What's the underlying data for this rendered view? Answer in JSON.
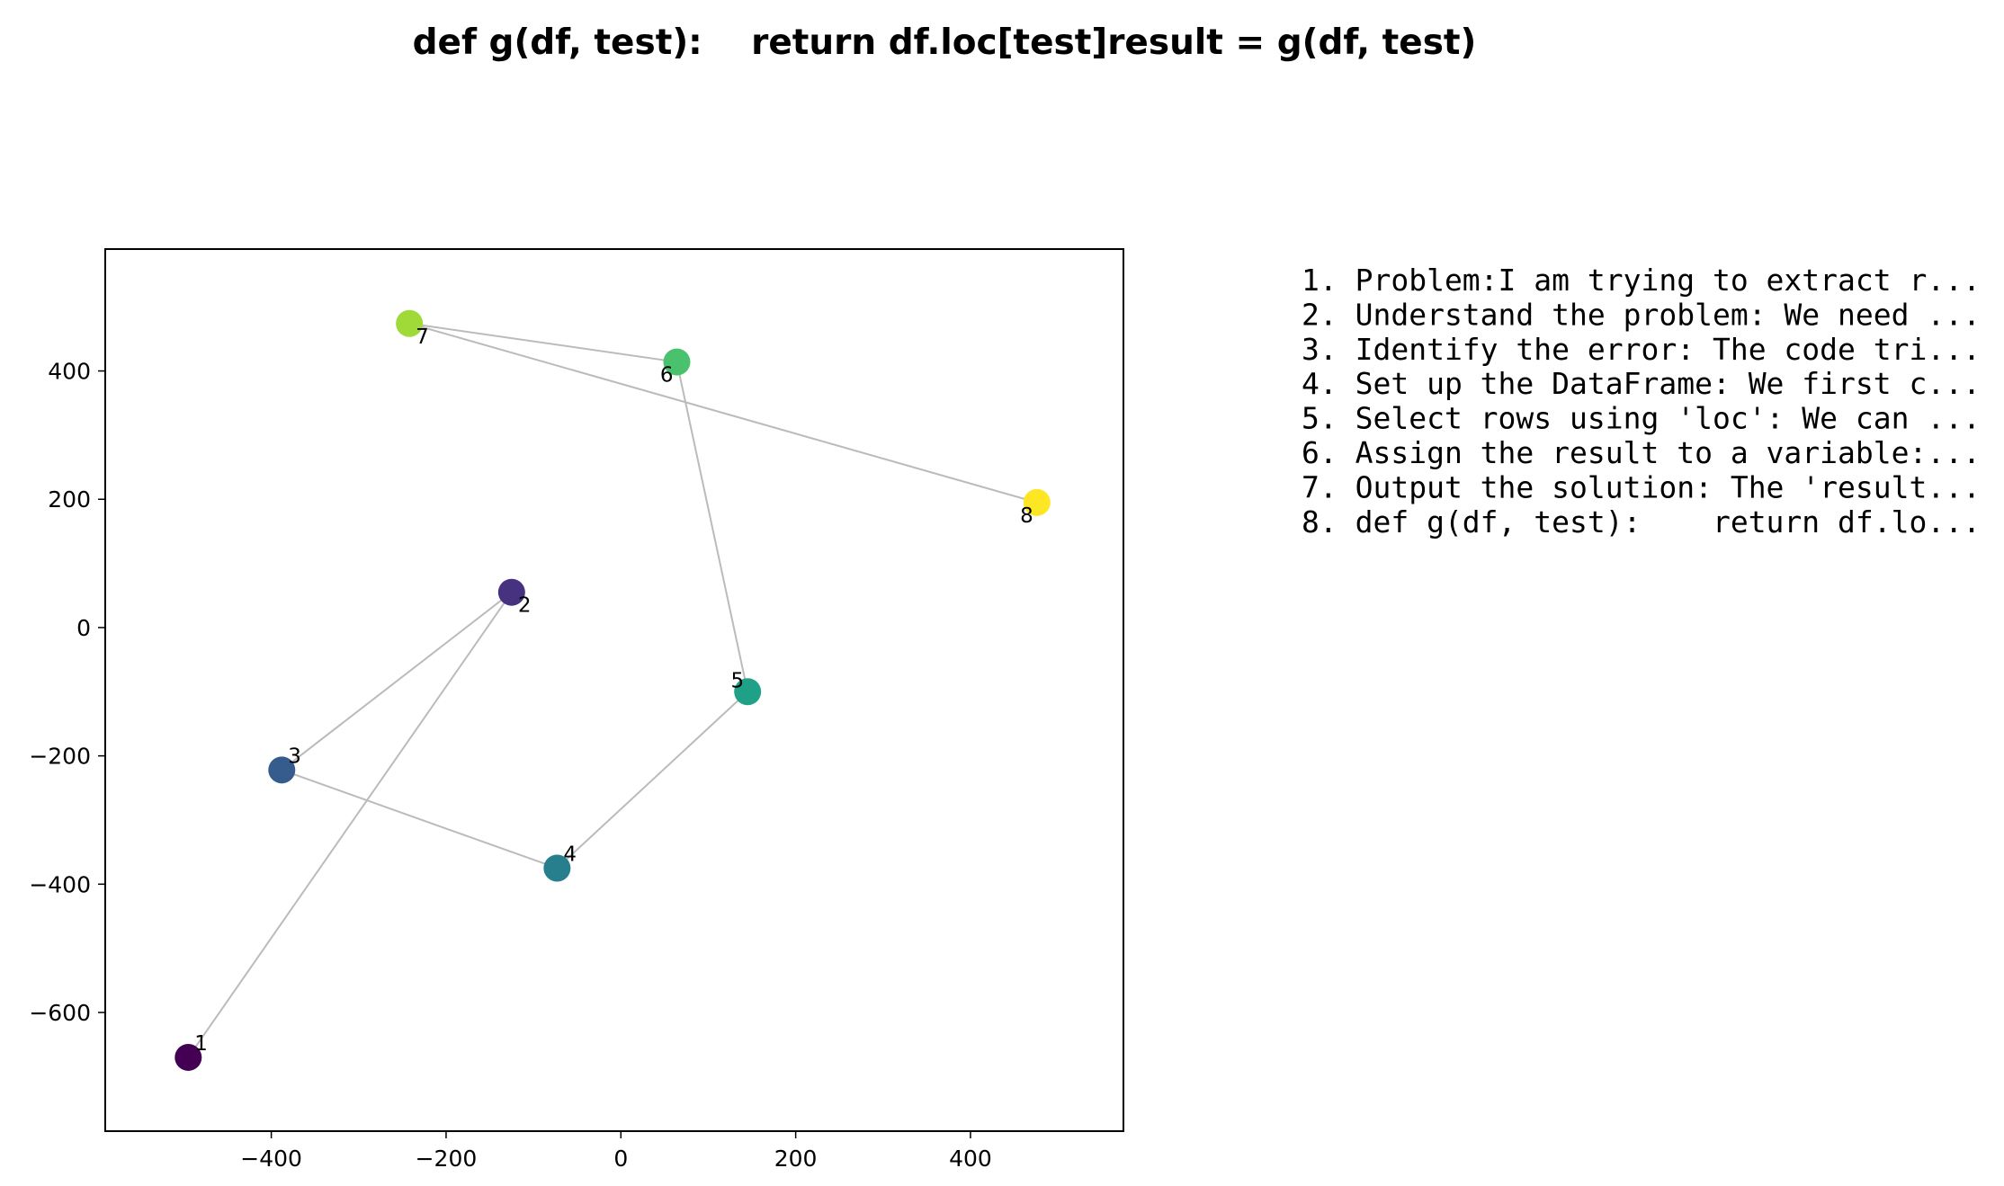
{
  "chart_data": {
    "type": "scatter",
    "title": "def g(df, test):    return df.loc[test]result = g(df, test)",
    "xlabel": "",
    "ylabel": "",
    "xlim": [
      -590,
      575
    ],
    "ylim": [
      -785,
      590
    ],
    "xticks": [
      -400,
      -200,
      0,
      200,
      400
    ],
    "yticks": [
      -600,
      -400,
      -200,
      0,
      200,
      400
    ],
    "xtick_labels": [
      "−400",
      "−200",
      "0",
      "200",
      "400"
    ],
    "ytick_labels": [
      "−600",
      "−400",
      "−200",
      "0",
      "200",
      "400"
    ],
    "grid": false,
    "connected_path": true,
    "points": [
      {
        "label": "1",
        "x": -495,
        "y": -670,
        "color": "#440154",
        "label_pos": "top-right"
      },
      {
        "label": "2",
        "x": -125,
        "y": 55,
        "color": "#46327e",
        "label_pos": "bottom-right"
      },
      {
        "label": "3",
        "x": -388,
        "y": -222,
        "color": "#365c8d",
        "label_pos": "top-right"
      },
      {
        "label": "4",
        "x": -73,
        "y": -375,
        "color": "#277f8e",
        "label_pos": "top-right"
      },
      {
        "label": "5",
        "x": 145,
        "y": -100,
        "color": "#1fa187",
        "label_pos": "top-left"
      },
      {
        "label": "6",
        "x": 64,
        "y": 414,
        "color": "#4ac16d",
        "label_pos": "bottom-left"
      },
      {
        "label": "7",
        "x": -242,
        "y": 474,
        "color": "#a0da39",
        "label_pos": "bottom-right"
      },
      {
        "label": "8",
        "x": 476,
        "y": 195,
        "color": "#fde725",
        "label_pos": "bottom-left"
      }
    ],
    "line_color": "#bbbbbb",
    "steps": [
      "1. Problem:I am trying to extract r...",
      "2. Understand the problem: We need ...",
      "3. Identify the error: The code tri...",
      "4. Set up the DataFrame: We first c...",
      "5. Select rows using 'loc': We can ...",
      "6. Assign the result to a variable:...",
      "7. Output the solution: The 'result...",
      "8. def g(df, test):    return df.lo..."
    ]
  }
}
